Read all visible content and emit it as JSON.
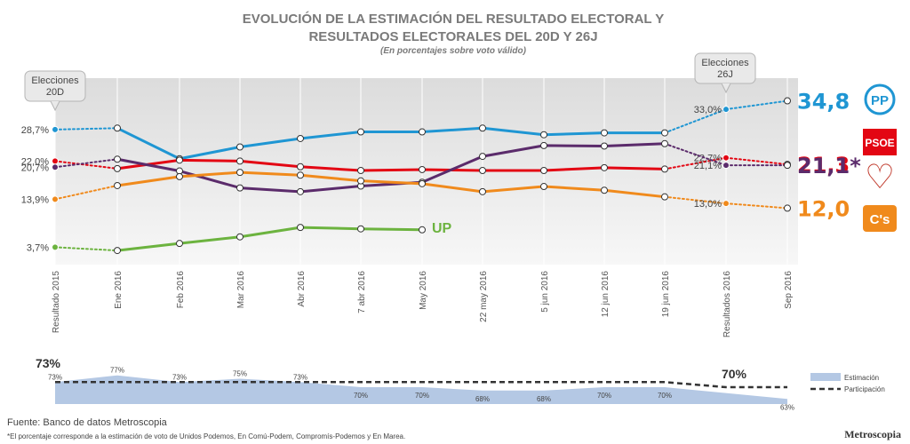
{
  "title_line1": "EVOLUCIÓN DE LA ESTIMACIÓN DEL RESULTADO ELECTORAL Y",
  "title_line2": "RESULTADOS ELECTORALES DEL 20D Y 26J",
  "subtitle": "(En porcentajes sobre voto válido)",
  "source": "Fuente: Banco de datos Metroscopia",
  "footnote": "*El porcentaje corresponde a la estimación de voto de Unidos Podemos, En Comú-Podem, Compromís-Podemos y En Marea.",
  "brand": "Metroscopia",
  "callouts": {
    "left": [
      "Elecciones",
      "20D"
    ],
    "right": [
      "Elecciones",
      "26J"
    ]
  },
  "chart_data": {
    "type": "line",
    "categories": [
      "Resultado 2015",
      "Ene 2016",
      "Feb 2016",
      "Mar 2016",
      "Abr 2016",
      "7 abr 2016",
      "May 2016",
      "22 may 2016",
      "5 jun 2016",
      "12 jun 2016",
      "19 jun 2016",
      "Resultados 2016",
      "Sep 2016"
    ],
    "ylim": [
      0,
      40
    ],
    "series": [
      {
        "key": "pp",
        "color": "#1f96d3",
        "final_label": "34,8",
        "logo_text": "PP",
        "values": [
          28.7,
          29.0,
          22.5,
          25.0,
          26.8,
          28.2,
          28.2,
          29.0,
          27.6,
          28.0,
          28.0,
          33.0,
          34.8
        ],
        "labels": {
          "0": "28,7%",
          "11": "33,0%"
        }
      },
      {
        "key": "psoe",
        "color": "#e30613",
        "final_label": "21,3",
        "logo_text": "PSOE",
        "values": [
          22.0,
          20.4,
          22.2,
          22.0,
          20.8,
          20.0,
          20.2,
          20.0,
          20.0,
          20.6,
          20.3,
          22.7,
          21.3
        ],
        "labels": {
          "0": "22,0%",
          "11": "22,7%"
        }
      },
      {
        "key": "up",
        "color": "#5b2b6b",
        "final_label": "21,1*",
        "logo_text": "♡",
        "values": [
          20.7,
          22.4,
          19.9,
          16.3,
          15.5,
          16.7,
          17.5,
          23.0,
          25.3,
          25.2,
          25.7,
          21.1,
          21.1
        ],
        "labels": {
          "0": "20,7%",
          "11": "21,1%"
        }
      },
      {
        "key": "cs",
        "color": "#f08a1c",
        "final_label": "12,0",
        "logo_text": "C's",
        "values": [
          13.9,
          16.8,
          18.7,
          19.6,
          19.0,
          17.8,
          17.2,
          15.5,
          16.6,
          15.8,
          14.4,
          13.0,
          12.0
        ],
        "labels": {
          "0": "13,9%",
          "11": "13,0%"
        }
      },
      {
        "key": "iu",
        "color": "#6cb33f",
        "final_label": "",
        "logo_text": "UP",
        "values": [
          3.7,
          3.0,
          4.5,
          5.9,
          7.9,
          7.6,
          7.4,
          null,
          null,
          null,
          null,
          null,
          null
        ],
        "labels": {
          "0": "3,7%"
        }
      }
    ],
    "participation": {
      "legend": [
        "Estimación",
        "Participación"
      ],
      "estimacion_values": [
        73,
        77,
        73,
        75,
        73,
        70,
        70,
        68,
        68,
        70,
        70,
        null,
        63
      ],
      "estimacion_labels": [
        "73%",
        "77%",
        "73%",
        "75%",
        "73%",
        "70%",
        "70%",
        "68%",
        "68%",
        "70%",
        "70%",
        "",
        "63%"
      ],
      "participacion_left": "73%",
      "participacion_right": "70%"
    }
  }
}
